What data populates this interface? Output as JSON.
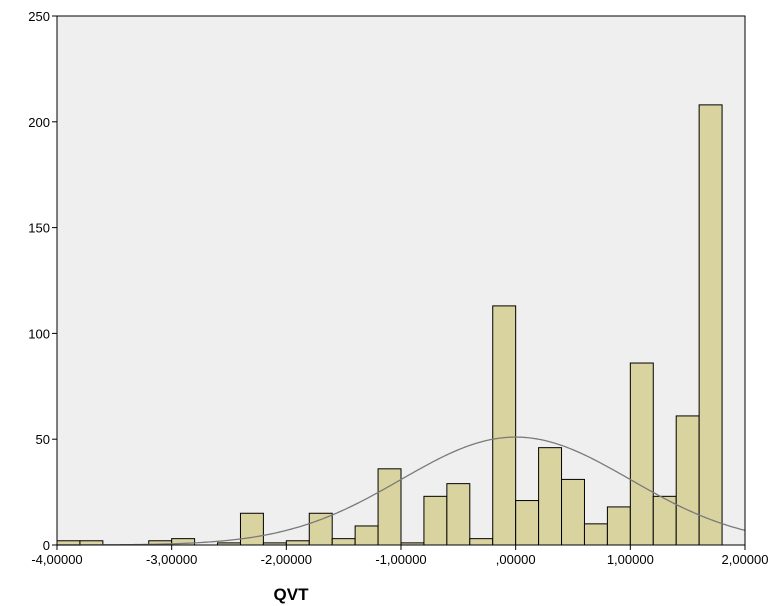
{
  "chart_data": {
    "type": "bar",
    "subtype": "histogram",
    "title": "",
    "xlabel": "QVT",
    "ylabel": "",
    "xlim": [
      -4.0,
      2.0
    ],
    "ylim": [
      0,
      250
    ],
    "x_ticks": [
      -4,
      -3,
      -2,
      -1,
      0,
      1,
      2
    ],
    "x_tick_labels": [
      "-4,00000",
      "-3,00000",
      "-2,00000",
      "-1,00000",
      ",00000",
      "1,00000",
      "2,00000"
    ],
    "y_ticks": [
      0,
      50,
      100,
      150,
      200,
      250
    ],
    "y_tick_labels": [
      "0",
      "50",
      "100",
      "150",
      "200",
      "250"
    ],
    "bin_width": 0.2,
    "bins": [
      {
        "x": -3.9,
        "value": 2
      },
      {
        "x": -3.7,
        "value": 2
      },
      {
        "x": -3.1,
        "value": 2
      },
      {
        "x": -2.9,
        "value": 3
      },
      {
        "x": -2.5,
        "value": 1
      },
      {
        "x": -2.3,
        "value": 15
      },
      {
        "x": -2.1,
        "value": 1
      },
      {
        "x": -1.9,
        "value": 2
      },
      {
        "x": -1.7,
        "value": 15
      },
      {
        "x": -1.5,
        "value": 3
      },
      {
        "x": -1.3,
        "value": 9
      },
      {
        "x": -1.1,
        "value": 36
      },
      {
        "x": -0.9,
        "value": 1
      },
      {
        "x": -0.7,
        "value": 23
      },
      {
        "x": -0.5,
        "value": 29
      },
      {
        "x": -0.3,
        "value": 3
      },
      {
        "x": -0.1,
        "value": 113
      },
      {
        "x": 0.1,
        "value": 21
      },
      {
        "x": 0.3,
        "value": 46
      },
      {
        "x": 0.5,
        "value": 31
      },
      {
        "x": 0.7,
        "value": 10
      },
      {
        "x": 0.9,
        "value": 18
      },
      {
        "x": 1.1,
        "value": 86
      },
      {
        "x": 1.3,
        "value": 23
      },
      {
        "x": 1.5,
        "value": 61
      },
      {
        "x": 1.7,
        "value": 208
      }
    ],
    "normal_curve": {
      "mean": 0.0,
      "sd": 1.0,
      "peak": 51
    },
    "grid": false,
    "colors": {
      "bar_fill": "#d9d3a0",
      "plot_background": "#efefef",
      "curve": "#7a7a7a"
    }
  }
}
